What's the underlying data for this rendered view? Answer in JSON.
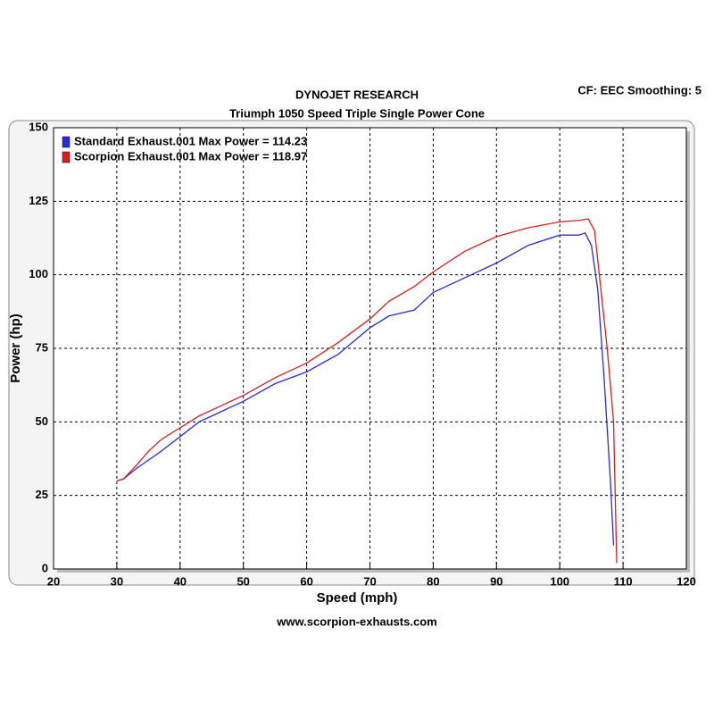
{
  "chart_data": {
    "type": "line",
    "title": "DYNOJET RESEARCH",
    "subtitle": "Triumph 1050 Speed Triple Single Power Cone",
    "annotation": "CF: EEC  Smoothing: 5",
    "footer": "www.scorpion-exhausts.com",
    "x_label": "Speed (mph)",
    "y_label": "Power (hp)",
    "xlim": [
      20,
      120
    ],
    "xticks": [
      20,
      30,
      40,
      50,
      60,
      70,
      80,
      90,
      100,
      110,
      120
    ],
    "ylim": [
      0,
      150
    ],
    "yticks": [
      0,
      25,
      50,
      75,
      100,
      125,
      150
    ],
    "grid": true,
    "legend": "top-left",
    "series": [
      {
        "name": "Standard Exhaust.001 Max Power = 114.23",
        "color": "#2a2ad8",
        "x": [
          30,
          31,
          33,
          35,
          37,
          40,
          43,
          45,
          50,
          55,
          60,
          65,
          70,
          73,
          77,
          80,
          85,
          90,
          95,
          100,
          103,
          104,
          105,
          106,
          107,
          108,
          108.5
        ],
        "values": [
          30,
          30.5,
          34,
          37,
          40,
          45,
          50,
          52,
          57,
          63,
          67,
          73,
          82,
          86,
          88,
          94,
          99,
          104,
          110,
          113.5,
          113.5,
          114.2,
          110,
          95,
          65,
          30,
          8
        ]
      },
      {
        "name": "Scorpion Exhaust.001 Max Power = 118.97",
        "color": "#d42020",
        "x": [
          30,
          31,
          33,
          35,
          37,
          40,
          43,
          45,
          50,
          55,
          60,
          65,
          70,
          73,
          77,
          80,
          85,
          90,
          95,
          100,
          103,
          104.5,
          105.5,
          106.5,
          107.5,
          108.5,
          109
        ],
        "values": [
          30,
          30.5,
          35,
          40,
          44,
          48,
          52,
          54,
          59,
          65,
          70,
          77,
          85,
          91,
          96,
          101,
          108,
          113,
          116,
          118,
          118.5,
          119,
          115,
          95,
          75,
          50,
          2
        ]
      }
    ]
  }
}
